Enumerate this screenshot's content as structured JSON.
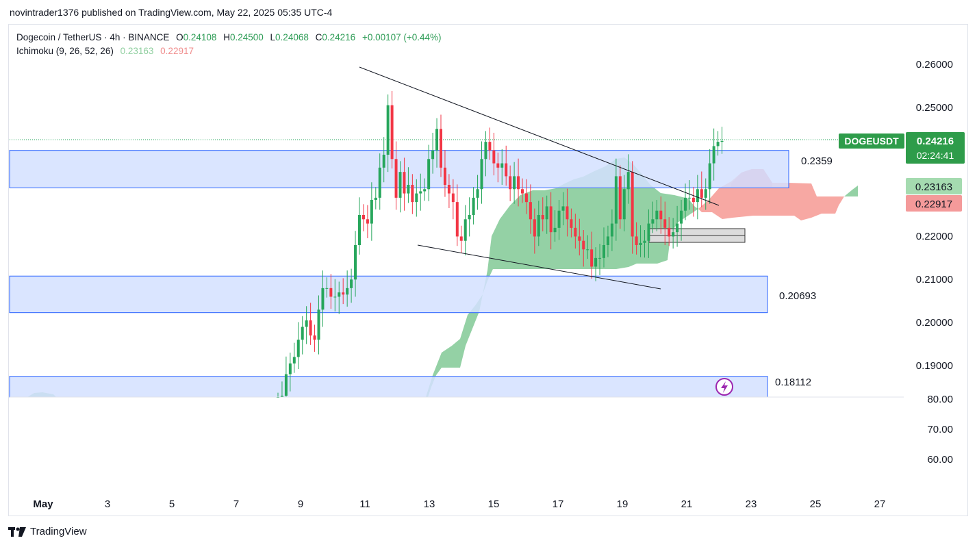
{
  "header": {
    "publisher_line": "novintrader1376 published on TradingView.com, May 22, 2025 05:35 UTC-4"
  },
  "legend": {
    "symbol": "Dogecoin / TetherUS · 4h · BINANCE",
    "open_label": "O",
    "open": "0.24108",
    "high_label": "H",
    "high": "0.24500",
    "low_label": "L",
    "low": "0.24068",
    "close_label": "C",
    "close": "0.24216",
    "change": "+0.00107 (+0.44%)",
    "indicator": "Ichimoku (9, 26, 52, 26)",
    "indicator_value_1": "0.23163",
    "indicator_value_2": "0.22917"
  },
  "colors": {
    "up": "#26a65b",
    "down": "#f23645",
    "zone_fill": "#d4e0ff",
    "zone_border": "#2962ff",
    "cloud_green": "#81c995",
    "cloud_red": "#f7a39e",
    "badge_green": "#2e9c4a"
  },
  "price_axis": {
    "ticks": [
      "0.26000",
      "0.25000",
      "0.22000",
      "0.21000",
      "0.20000",
      "0.19000",
      "80.00",
      "70.00",
      "60.00"
    ]
  },
  "time_axis": {
    "ticks": [
      "May",
      "3",
      "5",
      "7",
      "9",
      "11",
      "13",
      "15",
      "17",
      "19",
      "21",
      "23",
      "25",
      "27"
    ]
  },
  "badges": {
    "symbol": "DOGEUSDT",
    "last_price": "0.24216",
    "countdown": "02:24:41",
    "span_a": "0.23163",
    "span_b": "0.22917"
  },
  "zones": [
    {
      "label": "0.2359",
      "top": 0.24,
      "bottom": 0.2313
    },
    {
      "label": "0.20693",
      "top": 0.2108,
      "bottom": 0.2023
    },
    {
      "label": "0.18112",
      "top": 0.1875,
      "bottom": 0.1822
    }
  ],
  "chart_data": {
    "type": "candlestick",
    "symbol": "DOGEUSDT",
    "interval": "4h",
    "ohlc_last": {
      "open": 0.24108,
      "high": 0.245,
      "low": 0.24068,
      "close": 0.24216
    },
    "support_resistance_levels": [
      0.2359,
      0.20693,
      0.18112
    ],
    "trendlines": [
      {
        "from": [
          "May 10.9",
          0.2595
        ],
        "to": [
          "May 22.1",
          0.227
        ]
      },
      {
        "from": [
          "May 12.6",
          0.2185
        ],
        "to": [
          "May 20.6",
          0.2075
        ]
      }
    ],
    "closes": [
      0.1812,
      0.183,
      0.188,
      0.1905,
      0.192,
      0.196,
      0.199,
      0.2005,
      0.197,
      0.196,
      0.203,
      0.208,
      0.208,
      0.206,
      0.206,
      0.207,
      0.2065,
      0.208,
      0.21,
      0.218,
      0.225,
      0.224,
      0.223,
      0.2285,
      0.229,
      0.236,
      0.239,
      0.2505,
      0.238,
      0.229,
      0.235,
      0.23,
      0.232,
      0.228,
      0.23,
      0.2305,
      0.231,
      0.238,
      0.24,
      0.245,
      0.236,
      0.232,
      0.23,
      0.228,
      0.22,
      0.219,
      0.224,
      0.225,
      0.229,
      0.231,
      0.238,
      0.242,
      0.24,
      0.237,
      0.236,
      0.237,
      0.234,
      0.231,
      0.234,
      0.231,
      0.23,
      0.228,
      0.224,
      0.22,
      0.225,
      0.224,
      0.227,
      0.221,
      0.222,
      0.226,
      0.227,
      0.224,
      0.222,
      0.22,
      0.219,
      0.217,
      0.217,
      0.213,
      0.215,
      0.215,
      0.218,
      0.22,
      0.223,
      0.234,
      0.224,
      0.231,
      0.235,
      0.22,
      0.218,
      0.2185,
      0.219,
      0.223,
      0.224,
      0.226,
      0.224,
      0.222,
      0.22,
      0.221,
      0.223,
      0.226,
      0.229,
      0.229,
      0.228,
      0.231,
      0.229,
      0.231,
      0.237,
      0.241,
      0.242,
      0.2422
    ],
    "ichimoku_values": {
      "span_a": 0.23163,
      "span_b": 0.22917
    }
  }
}
